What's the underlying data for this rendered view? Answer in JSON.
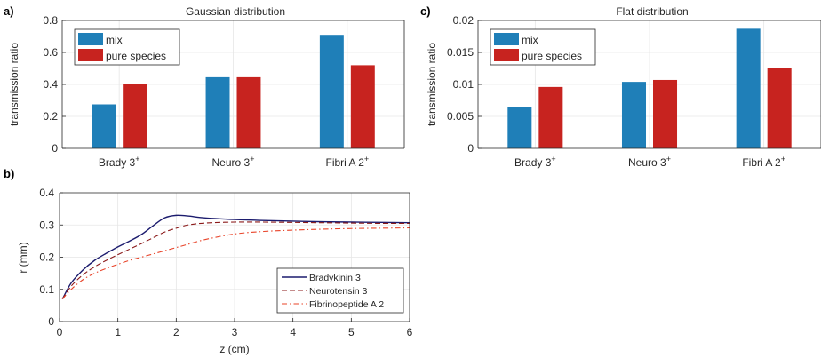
{
  "colors": {
    "mix": "#1f7fb8",
    "pure": "#c7231f",
    "bradykinin": "#1c1c6e",
    "neurotensin": "#8b1a1a",
    "fibrinopeptide": "#e8442a"
  },
  "chart_data": [
    {
      "panel": "a)",
      "type": "bar",
      "title": "Gaussian distribution",
      "ylabel": "transmission ratio",
      "xlabel": "",
      "categories": [
        "Brady 3",
        "Neuro 3",
        "Fibri A 2"
      ],
      "category_superscripts": [
        "+",
        "+",
        "+"
      ],
      "ylim": [
        0,
        0.8
      ],
      "yticks": [
        "0",
        "0.2",
        "0.4",
        "0.6",
        "0.8"
      ],
      "grid": true,
      "legend": "top-left",
      "series": [
        {
          "name": "mix",
          "values": [
            0.275,
            0.445,
            0.71
          ]
        },
        {
          "name": "pure species",
          "values": [
            0.4,
            0.445,
            0.52
          ]
        }
      ]
    },
    {
      "panel": "c)",
      "type": "bar",
      "title": "Flat distribution",
      "ylabel": "transmission ratio",
      "xlabel": "",
      "categories": [
        "Brady 3",
        "Neuro 3",
        "Fibri A 2"
      ],
      "category_superscripts": [
        "+",
        "+",
        "+"
      ],
      "ylim": [
        0,
        0.02
      ],
      "yticks": [
        "0",
        "0.005",
        "0.01",
        "0.015",
        "0.02"
      ],
      "grid": true,
      "legend": "top-left",
      "series": [
        {
          "name": "mix",
          "values": [
            0.0065,
            0.0104,
            0.0187
          ]
        },
        {
          "name": "pure species",
          "values": [
            0.0096,
            0.0107,
            0.0125
          ]
        }
      ]
    },
    {
      "panel": "b)",
      "type": "line",
      "title": "",
      "xlabel": "z (cm)",
      "ylabel": "r (mm)",
      "xlim": [
        0,
        6
      ],
      "ylim": [
        0,
        0.4
      ],
      "xticks": [
        "0",
        "1",
        "2",
        "3",
        "4",
        "5",
        "6"
      ],
      "yticks": [
        "0",
        "0.1",
        "0.2",
        "0.3",
        "0.4"
      ],
      "grid": true,
      "legend": "bottom-right",
      "series": [
        {
          "name": "Bradykinin 3",
          "style": "solid",
          "x": [
            0.05,
            0.2,
            0.4,
            0.6,
            0.8,
            1.0,
            1.2,
            1.4,
            1.6,
            1.8,
            2.0,
            2.2,
            2.5,
            3.0,
            3.5,
            4.0,
            4.5,
            5.0,
            5.5,
            6.0
          ],
          "y": [
            0.07,
            0.12,
            0.16,
            0.19,
            0.212,
            0.232,
            0.25,
            0.27,
            0.297,
            0.322,
            0.33,
            0.328,
            0.322,
            0.317,
            0.314,
            0.312,
            0.31,
            0.309,
            0.308,
            0.307
          ]
        },
        {
          "name": "Neurotensin 3",
          "style": "dashed",
          "x": [
            0.05,
            0.2,
            0.4,
            0.6,
            0.8,
            1.0,
            1.2,
            1.4,
            1.6,
            1.8,
            2.0,
            2.2,
            2.5,
            3.0,
            3.5,
            4.0,
            4.5,
            5.0,
            5.5,
            6.0
          ],
          "y": [
            0.07,
            0.11,
            0.145,
            0.17,
            0.19,
            0.208,
            0.225,
            0.242,
            0.26,
            0.278,
            0.29,
            0.3,
            0.306,
            0.309,
            0.309,
            0.308,
            0.307,
            0.306,
            0.305,
            0.305
          ]
        },
        {
          "name": "Fibrinopeptide A 2",
          "style": "dashdot",
          "x": [
            0.05,
            0.2,
            0.4,
            0.6,
            0.8,
            1.0,
            1.2,
            1.4,
            1.6,
            1.8,
            2.0,
            2.2,
            2.5,
            3.0,
            3.5,
            4.0,
            4.5,
            5.0,
            5.5,
            6.0
          ],
          "y": [
            0.07,
            0.1,
            0.13,
            0.15,
            0.165,
            0.178,
            0.19,
            0.2,
            0.21,
            0.22,
            0.23,
            0.24,
            0.255,
            0.272,
            0.28,
            0.284,
            0.287,
            0.289,
            0.29,
            0.291
          ]
        }
      ]
    }
  ]
}
